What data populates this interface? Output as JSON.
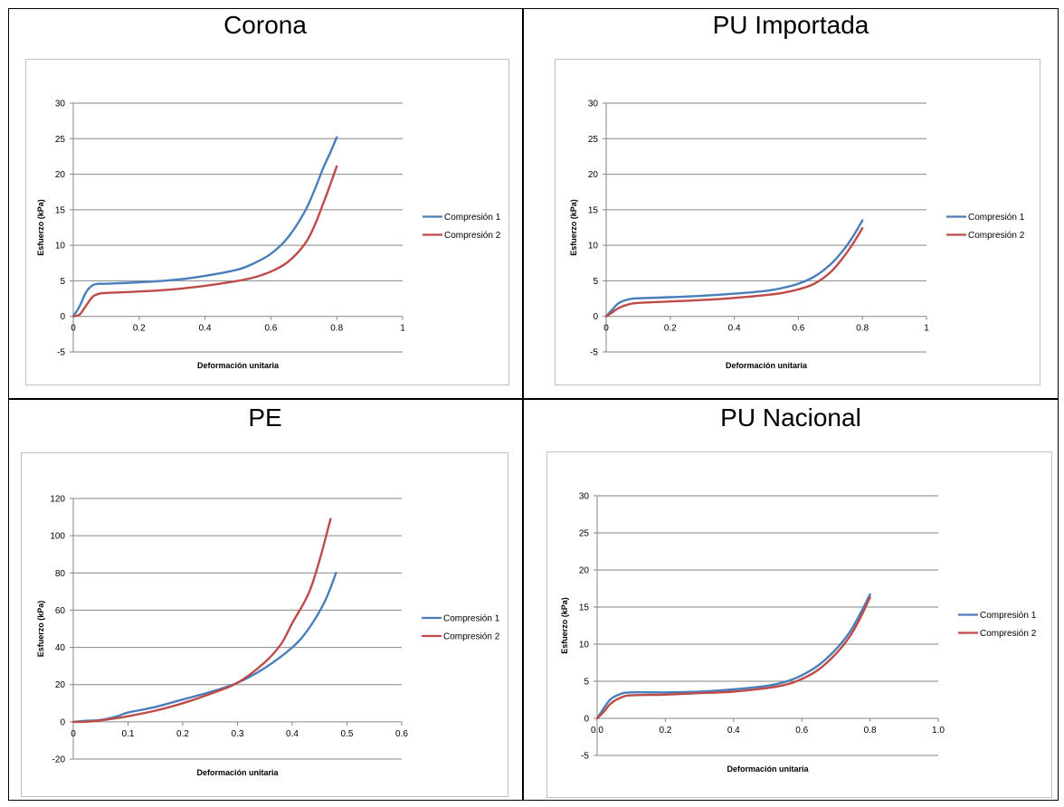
{
  "chart_data": [
    {
      "type": "line",
      "title": "Corona",
      "xlabel": "Deformación unitaria",
      "ylabel": "Esfuerzo (kPa)",
      "xlim": [
        0,
        1
      ],
      "ylim": [
        -5,
        30
      ],
      "xticks": [
        "0",
        "0.2",
        "0.4",
        "0.6",
        "0.8",
        "1"
      ],
      "xtick_values": [
        0,
        0.2,
        0.4,
        0.6,
        0.8,
        1
      ],
      "yticks": [
        -5,
        0,
        5,
        10,
        15,
        20,
        25,
        30
      ],
      "grid": true,
      "legend_position": "right",
      "series": [
        {
          "name": "Compresión 1",
          "color": "#4a7ebb",
          "x": [
            0,
            0.02,
            0.04,
            0.06,
            0.08,
            0.1,
            0.2,
            0.3,
            0.4,
            0.5,
            0.55,
            0.6,
            0.65,
            0.7,
            0.73,
            0.76,
            0.78,
            0.8
          ],
          "y": [
            0,
            1.5,
            3.5,
            4.4,
            4.6,
            4.6,
            4.8,
            5.1,
            5.7,
            6.6,
            7.5,
            8.8,
            11,
            14.5,
            17.5,
            21,
            23,
            25.2
          ]
        },
        {
          "name": "Compresión 2",
          "color": "#be4b48",
          "x": [
            0,
            0.02,
            0.04,
            0.06,
            0.08,
            0.1,
            0.2,
            0.3,
            0.4,
            0.5,
            0.55,
            0.6,
            0.65,
            0.7,
            0.73,
            0.76,
            0.78,
            0.8
          ],
          "y": [
            0,
            0.3,
            1.6,
            2.8,
            3.2,
            3.3,
            3.5,
            3.8,
            4.3,
            5.0,
            5.5,
            6.3,
            7.6,
            10,
            12.5,
            16,
            18.5,
            21.1
          ]
        }
      ]
    },
    {
      "type": "line",
      "title": "PU Importada",
      "xlabel": "Deformación unitaria",
      "ylabel": "Esfuerzo (kPa)",
      "xlim": [
        0,
        1
      ],
      "ylim": [
        -5,
        30
      ],
      "xticks": [
        "0",
        "0.2",
        "0.4",
        "0.6",
        "0.8",
        "1"
      ],
      "xtick_values": [
        0,
        0.2,
        0.4,
        0.6,
        0.8,
        1
      ],
      "yticks": [
        -5,
        0,
        5,
        10,
        15,
        20,
        25,
        30
      ],
      "grid": true,
      "legend_position": "right",
      "series": [
        {
          "name": "Compresión 1",
          "color": "#4a7ebb",
          "x": [
            0,
            0.02,
            0.04,
            0.07,
            0.1,
            0.2,
            0.3,
            0.4,
            0.5,
            0.55,
            0.6,
            0.65,
            0.7,
            0.74,
            0.77,
            0.8
          ],
          "y": [
            0,
            1.0,
            1.9,
            2.4,
            2.55,
            2.7,
            2.9,
            3.2,
            3.6,
            4.0,
            4.6,
            5.6,
            7.3,
            9.3,
            11.2,
            13.5
          ]
        },
        {
          "name": "Compresión 2",
          "color": "#be4b48",
          "x": [
            0,
            0.02,
            0.04,
            0.07,
            0.1,
            0.2,
            0.3,
            0.4,
            0.5,
            0.55,
            0.6,
            0.65,
            0.7,
            0.74,
            0.77,
            0.8
          ],
          "y": [
            0,
            0.6,
            1.2,
            1.7,
            1.9,
            2.1,
            2.3,
            2.6,
            3.0,
            3.3,
            3.8,
            4.6,
            6.2,
            8.3,
            10.2,
            12.4
          ]
        }
      ]
    },
    {
      "type": "line",
      "title": "PE",
      "xlabel": "Deformación unitaria",
      "ylabel": "Esfuerzo (kPa)",
      "xlim": [
        0,
        0.6
      ],
      "ylim": [
        -20,
        120
      ],
      "xticks": [
        "0",
        "0.1",
        "0.2",
        "0.3",
        "0.4",
        "0.5",
        "0.6"
      ],
      "xtick_values": [
        0,
        0.1,
        0.2,
        0.3,
        0.4,
        0.5,
        0.6
      ],
      "yticks": [
        -20,
        0,
        20,
        40,
        60,
        80,
        100,
        120
      ],
      "grid": true,
      "legend_position": "right",
      "series": [
        {
          "name": "Compresión 1",
          "color": "#4a7ebb",
          "x": [
            0,
            0.02,
            0.05,
            0.08,
            0.1,
            0.15,
            0.2,
            0.25,
            0.3,
            0.35,
            0.4,
            0.43,
            0.46,
            0.48
          ],
          "y": [
            0,
            0.5,
            1,
            3,
            5,
            8,
            12,
            16,
            21,
            29,
            40,
            50,
            65,
            80
          ]
        },
        {
          "name": "Compresión 2",
          "color": "#be4b48",
          "x": [
            0,
            0.02,
            0.05,
            0.08,
            0.1,
            0.15,
            0.2,
            0.25,
            0.3,
            0.35,
            0.38,
            0.4,
            0.43,
            0.45,
            0.47
          ],
          "y": [
            0,
            0,
            0.8,
            2,
            3,
            6,
            10,
            15,
            21,
            32,
            42,
            53,
            69,
            87,
            109
          ]
        }
      ]
    },
    {
      "type": "line",
      "title": "PU Nacional",
      "xlabel": "Deformación unitaria",
      "ylabel": "Esfuerzo (kPa)",
      "xlim": [
        0,
        1
      ],
      "ylim": [
        -5,
        30
      ],
      "xticks": [
        "0.0",
        "0.2",
        "0.4",
        "0.6",
        "0.8",
        "1.0"
      ],
      "xtick_values": [
        0,
        0.2,
        0.4,
        0.6,
        0.8,
        1
      ],
      "yticks": [
        -5,
        0,
        5,
        10,
        15,
        20,
        25,
        30
      ],
      "grid": true,
      "legend_position": "right",
      "series": [
        {
          "name": "Compresión 1",
          "color": "#4a7ebb",
          "x": [
            0,
            0.02,
            0.04,
            0.07,
            0.1,
            0.2,
            0.3,
            0.4,
            0.5,
            0.55,
            0.6,
            0.65,
            0.7,
            0.74,
            0.77,
            0.8
          ],
          "y": [
            0,
            1.4,
            2.6,
            3.3,
            3.5,
            3.5,
            3.6,
            3.9,
            4.4,
            4.9,
            5.8,
            7.2,
            9.3,
            11.6,
            14,
            16.7
          ]
        },
        {
          "name": "Compresión 2",
          "color": "#be4b48",
          "x": [
            0,
            0.02,
            0.04,
            0.07,
            0.1,
            0.2,
            0.3,
            0.4,
            0.5,
            0.55,
            0.6,
            0.65,
            0.7,
            0.74,
            0.77,
            0.8
          ],
          "y": [
            0,
            0.9,
            2.0,
            2.8,
            3.1,
            3.2,
            3.4,
            3.6,
            4.1,
            4.5,
            5.3,
            6.6,
            8.7,
            11.0,
            13.4,
            16.3
          ]
        }
      ]
    }
  ]
}
